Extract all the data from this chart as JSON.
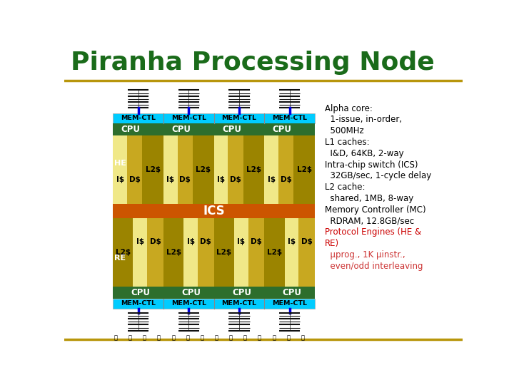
{
  "title": "Piranha Processing Node",
  "title_color": "#1a6b1a",
  "title_fontsize": 26,
  "bg_color": "#ffffff",
  "gold_line_color": "#b8960c",
  "diagram": {
    "outer_bg": "#2d5a1b",
    "mem_ctl_color": "#00ccff",
    "cpu_color": "#2d6e2d",
    "l2_color": "#9b8400",
    "i_cache_color": "#f0e888",
    "d_cache_color": "#c8a820",
    "ics_color": "#cc5500",
    "he_re_color": "#1e4d10",
    "mem_ctl_text_color": "#000000",
    "cpu_text_color": "#ffffff",
    "ics_text_color": "#ffffff",
    "he_re_text_color": "#ffffff",
    "cache_text_color": "#000000"
  },
  "right_text": [
    {
      "text": "Alpha core:",
      "color": "#000000"
    },
    {
      "text": "  1-issue, in-order,",
      "color": "#000000"
    },
    {
      "text": "  500MHz",
      "color": "#000000"
    },
    {
      "text": "L1 caches:",
      "color": "#000000"
    },
    {
      "text": "  I&D, 64KB, 2-way",
      "color": "#000000"
    },
    {
      "text": "Intra-chip switch (ICS)",
      "color": "#000000"
    },
    {
      "text": "  32GB/sec, 1-cycle delay",
      "color": "#000000"
    },
    {
      "text": "L2 cache:",
      "color": "#000000"
    },
    {
      "text": "  shared, 1MB, 8-way",
      "color": "#000000"
    },
    {
      "text": "Memory Controller (MC)",
      "color": "#000000"
    },
    {
      "text": "  RDRAM, 12.8GB/sec",
      "color": "#000000"
    },
    {
      "text": "Protocol Engines (HE &",
      "color": "#cc0000"
    },
    {
      "text": "RE)",
      "color": "#cc0000"
    },
    {
      "text": "  μprog., 1K μinstr.,",
      "color": "#cc3333"
    },
    {
      "text": "  even/odd interleaving",
      "color": "#cc3333"
    }
  ]
}
